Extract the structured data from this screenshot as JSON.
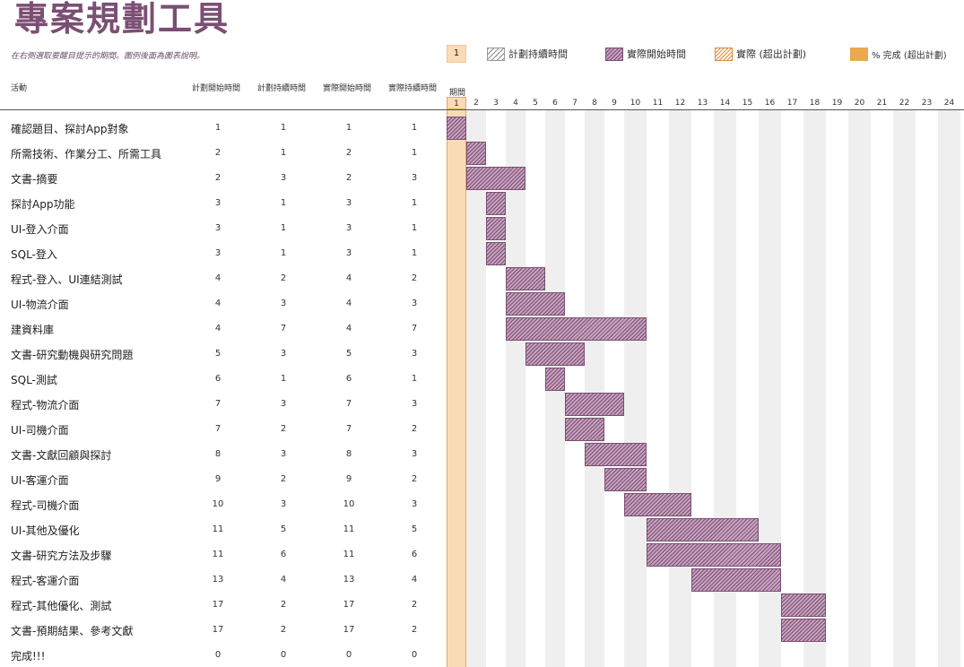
{
  "title": "專案規劃工具",
  "subtitle": "在右側選取要醒目提示的期間。圖例後面為圖表說明。",
  "highlight_period": "1",
  "legend": {
    "plan_duration": "計劃持續時間",
    "actual_start": "實際開始時間",
    "actual_over": "實際 (超出計劃)",
    "percent_done": "% 完成 (超出計劃)"
  },
  "headers": {
    "activity": "活動",
    "plan_start": "計劃開始時間",
    "plan_duration": "計劃持續時間",
    "actual_start": "實際開始時間",
    "actual_duration": "實際持續時間",
    "period": "期間"
  },
  "periods": [
    "1",
    "2",
    "3",
    "4",
    "5",
    "6",
    "7",
    "8",
    "9",
    "10",
    "11",
    "12",
    "13",
    "14",
    "15",
    "16",
    "17",
    "18",
    "19",
    "20",
    "21",
    "22",
    "23",
    "24"
  ],
  "tasks": [
    {
      "name": "確認題目、探討App對象",
      "plan_start": 1,
      "plan_duration": 1,
      "actual_start": 1,
      "actual_duration": 1
    },
    {
      "name": "所需技術、作業分工、所需工具",
      "plan_start": 2,
      "plan_duration": 1,
      "actual_start": 2,
      "actual_duration": 1
    },
    {
      "name": "文書-摘要",
      "plan_start": 2,
      "plan_duration": 3,
      "actual_start": 2,
      "actual_duration": 3
    },
    {
      "name": "探討App功能",
      "plan_start": 3,
      "plan_duration": 1,
      "actual_start": 3,
      "actual_duration": 1
    },
    {
      "name": "UI-登入介面",
      "plan_start": 3,
      "plan_duration": 1,
      "actual_start": 3,
      "actual_duration": 1
    },
    {
      "name": "SQL-登入",
      "plan_start": 3,
      "plan_duration": 1,
      "actual_start": 3,
      "actual_duration": 1
    },
    {
      "name": "程式-登入、UI連結測試",
      "plan_start": 4,
      "plan_duration": 2,
      "actual_start": 4,
      "actual_duration": 2
    },
    {
      "name": "UI-物流介面",
      "plan_start": 4,
      "plan_duration": 3,
      "actual_start": 4,
      "actual_duration": 3
    },
    {
      "name": "建資料庫",
      "plan_start": 4,
      "plan_duration": 7,
      "actual_start": 4,
      "actual_duration": 7
    },
    {
      "name": "文書-研究動機與研究問題",
      "plan_start": 5,
      "plan_duration": 3,
      "actual_start": 5,
      "actual_duration": 3
    },
    {
      "name": "SQL-測試",
      "plan_start": 6,
      "plan_duration": 1,
      "actual_start": 6,
      "actual_duration": 1
    },
    {
      "name": "程式-物流介面",
      "plan_start": 7,
      "plan_duration": 3,
      "actual_start": 7,
      "actual_duration": 3
    },
    {
      "name": "UI-司機介面",
      "plan_start": 7,
      "plan_duration": 2,
      "actual_start": 7,
      "actual_duration": 2
    },
    {
      "name": "文書-文獻回顧與探討",
      "plan_start": 8,
      "plan_duration": 3,
      "actual_start": 8,
      "actual_duration": 3
    },
    {
      "name": "UI-客運介面",
      "plan_start": 9,
      "plan_duration": 2,
      "actual_start": 9,
      "actual_duration": 2
    },
    {
      "name": "程式-司機介面",
      "plan_start": 10,
      "plan_duration": 3,
      "actual_start": 10,
      "actual_duration": 3
    },
    {
      "name": "UI-其他及優化",
      "plan_start": 11,
      "plan_duration": 5,
      "actual_start": 11,
      "actual_duration": 5
    },
    {
      "name": "文書-研究方法及步驟",
      "plan_start": 11,
      "plan_duration": 6,
      "actual_start": 11,
      "actual_duration": 6
    },
    {
      "name": "程式-客運介面",
      "plan_start": 13,
      "plan_duration": 4,
      "actual_start": 13,
      "actual_duration": 4
    },
    {
      "name": "程式-其他優化、測試",
      "plan_start": 17,
      "plan_duration": 2,
      "actual_start": 17,
      "actual_duration": 2
    },
    {
      "name": "文書-預期結果、參考文獻",
      "plan_start": 17,
      "plan_duration": 2,
      "actual_start": 17,
      "actual_duration": 2
    },
    {
      "name": "完成!!!",
      "plan_start": 0,
      "plan_duration": 0,
      "actual_start": 0,
      "actual_duration": 0
    }
  ],
  "colors": {
    "title": "#7b4f73",
    "actual_bar": "#7b4f73",
    "highlight": "#f9dcb4",
    "grid_stripe": "#efefef",
    "percent_done": "#eaa94e"
  }
}
